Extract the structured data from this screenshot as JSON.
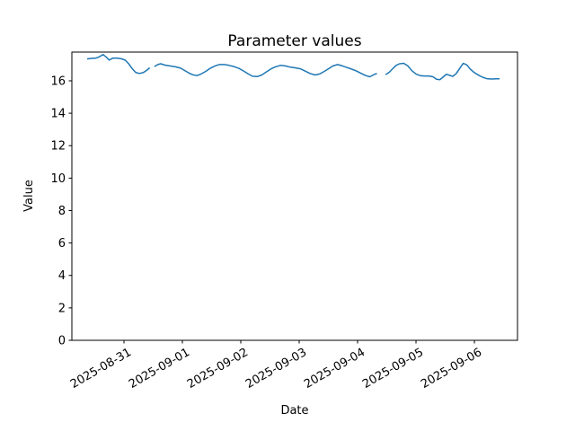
{
  "chart_data": {
    "type": "line",
    "title": "Parameter values",
    "xlabel": "Date",
    "ylabel": "Value",
    "grid": false,
    "legend": "none",
    "line_color": "#1f77b4",
    "line_width": 1.5,
    "x_unit": "days since 2025-08-31 00:00",
    "xlim": [
      -0.892,
      6.738
    ],
    "ylim": [
      0,
      17.77
    ],
    "y_ticks": [
      0,
      2,
      4,
      6,
      8,
      10,
      12,
      14,
      16
    ],
    "x_ticks": [
      0,
      1,
      2,
      3,
      4,
      5,
      6
    ],
    "x_tick_labels": [
      "2025-08-31",
      "2025-09-01",
      "2025-09-02",
      "2025-09-03",
      "2025-09-04",
      "2025-09-05",
      "2025-09-06"
    ],
    "series": [
      {
        "name": "Parameter values",
        "note": "single line with two short data gaps; x = days since 2025-08-31 00:00",
        "segments": [
          [
            [
              -0.63,
              17.35
            ],
            [
              -0.55,
              17.38
            ],
            [
              -0.48,
              17.4
            ],
            [
              -0.42,
              17.48
            ],
            [
              -0.36,
              17.62
            ],
            [
              -0.3,
              17.45
            ],
            [
              -0.25,
              17.28
            ],
            [
              -0.19,
              17.4
            ],
            [
              -0.12,
              17.4
            ],
            [
              -0.05,
              17.36
            ],
            [
              0.02,
              17.28
            ],
            [
              0.08,
              17.05
            ],
            [
              0.14,
              16.75
            ],
            [
              0.2,
              16.52
            ],
            [
              0.26,
              16.45
            ],
            [
              0.33,
              16.5
            ],
            [
              0.38,
              16.62
            ],
            [
              0.44,
              16.8
            ]
          ],
          [
            [
              0.52,
              16.88
            ],
            [
              0.58,
              17.0
            ],
            [
              0.63,
              17.05
            ],
            [
              0.7,
              16.97
            ],
            [
              0.78,
              16.92
            ],
            [
              0.88,
              16.86
            ],
            [
              0.97,
              16.78
            ],
            [
              1.03,
              16.66
            ],
            [
              1.1,
              16.5
            ],
            [
              1.17,
              16.38
            ],
            [
              1.25,
              16.32
            ],
            [
              1.32,
              16.42
            ],
            [
              1.4,
              16.58
            ],
            [
              1.48,
              16.78
            ],
            [
              1.56,
              16.92
            ],
            [
              1.63,
              17.0
            ],
            [
              1.72,
              17.0
            ],
            [
              1.8,
              16.95
            ],
            [
              1.88,
              16.88
            ],
            [
              1.97,
              16.76
            ],
            [
              2.05,
              16.6
            ],
            [
              2.12,
              16.44
            ],
            [
              2.2,
              16.28
            ],
            [
              2.28,
              16.26
            ],
            [
              2.36,
              16.36
            ],
            [
              2.44,
              16.55
            ],
            [
              2.52,
              16.74
            ],
            [
              2.6,
              16.87
            ],
            [
              2.68,
              16.95
            ],
            [
              2.76,
              16.92
            ],
            [
              2.85,
              16.84
            ],
            [
              2.93,
              16.8
            ],
            [
              3.02,
              16.74
            ],
            [
              3.1,
              16.6
            ],
            [
              3.18,
              16.46
            ],
            [
              3.27,
              16.36
            ],
            [
              3.35,
              16.42
            ],
            [
              3.43,
              16.58
            ],
            [
              3.51,
              16.76
            ],
            [
              3.58,
              16.92
            ],
            [
              3.66,
              17.0
            ],
            [
              3.74,
              16.92
            ],
            [
              3.82,
              16.82
            ],
            [
              3.9,
              16.72
            ],
            [
              3.98,
              16.6
            ],
            [
              4.06,
              16.46
            ],
            [
              4.14,
              16.32
            ],
            [
              4.21,
              16.25
            ],
            [
              4.28,
              16.38
            ],
            [
              4.33,
              16.45
            ]
          ],
          [
            [
              4.48,
              16.38
            ],
            [
              4.54,
              16.52
            ],
            [
              4.6,
              16.74
            ],
            [
              4.66,
              16.95
            ],
            [
              4.72,
              17.05
            ],
            [
              4.79,
              17.08
            ],
            [
              4.86,
              16.92
            ],
            [
              4.93,
              16.62
            ],
            [
              5.0,
              16.42
            ],
            [
              5.07,
              16.32
            ],
            [
              5.14,
              16.3
            ],
            [
              5.22,
              16.3
            ],
            [
              5.29,
              16.25
            ],
            [
              5.35,
              16.1
            ],
            [
              5.41,
              16.07
            ],
            [
              5.47,
              16.25
            ],
            [
              5.52,
              16.4
            ],
            [
              5.58,
              16.33
            ],
            [
              5.63,
              16.27
            ],
            [
              5.69,
              16.45
            ],
            [
              5.75,
              16.78
            ],
            [
              5.81,
              17.08
            ],
            [
              5.87,
              16.98
            ],
            [
              5.93,
              16.72
            ],
            [
              6.0,
              16.5
            ],
            [
              6.07,
              16.35
            ],
            [
              6.14,
              16.22
            ],
            [
              6.21,
              16.13
            ],
            [
              6.29,
              16.11
            ],
            [
              6.37,
              16.12
            ],
            [
              6.43,
              16.12
            ]
          ]
        ]
      }
    ]
  }
}
